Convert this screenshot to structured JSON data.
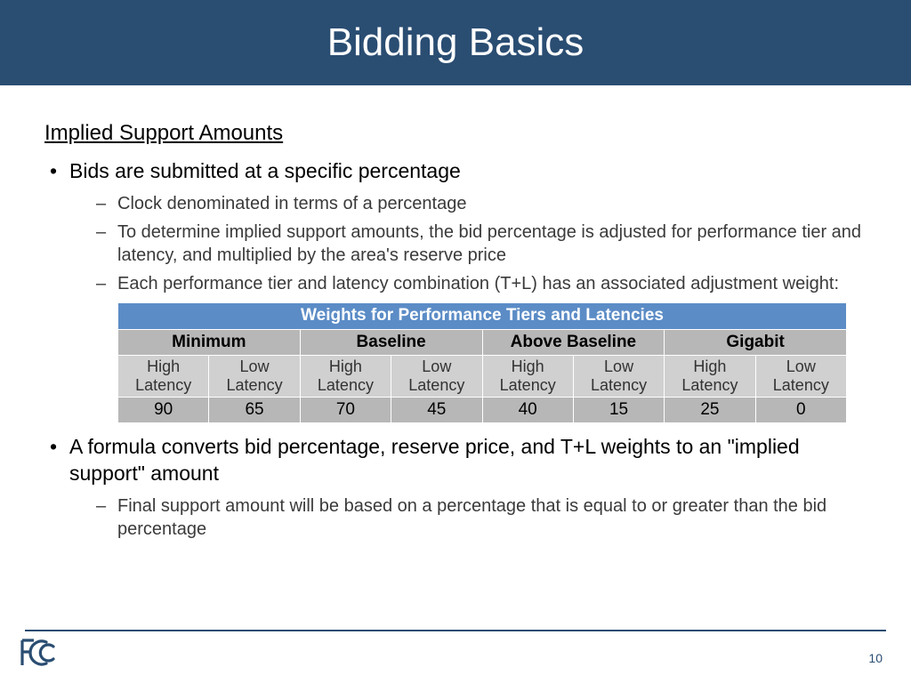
{
  "header": {
    "title": "Bidding Basics"
  },
  "section_title": "Implied Support Amounts",
  "bullets": [
    {
      "text": "Bids are submitted at a specific percentage",
      "subs": [
        "Clock denominated in terms of a percentage",
        "To determine implied support amounts, the bid percentage is adjusted for performance tier and latency, and multiplied by the area's reserve price",
        "Each performance tier and latency combination (T+L) has an associated adjustment weight:"
      ]
    },
    {
      "text": "A formula converts bid percentage, reserve price, and T+L weights to an \"implied support\" amount",
      "subs": [
        "Final support amount will be based on a percentage that is equal to or greater than the bid percentage"
      ]
    }
  ],
  "table": {
    "title": "Weights for Performance Tiers and Latencies",
    "tiers": [
      "Minimum",
      "Baseline",
      "Above Baseline",
      "Gigabit"
    ],
    "latency_labels": [
      "High Latency",
      "Low Latency",
      "High Latency",
      "Low Latency",
      "High Latency",
      "Low Latency",
      "High Latency",
      "Low Latency"
    ],
    "values": [
      90,
      65,
      70,
      45,
      40,
      15,
      25,
      0
    ],
    "title_bg": "#5b8cc6",
    "tier_bg": "#b7b7b7",
    "lat_bg": "#d0d0d0",
    "val_bg": "#b7b7b7"
  },
  "page_number": "10",
  "colors": {
    "header_bg": "#2a4d72",
    "logo": "#2a4d72"
  }
}
